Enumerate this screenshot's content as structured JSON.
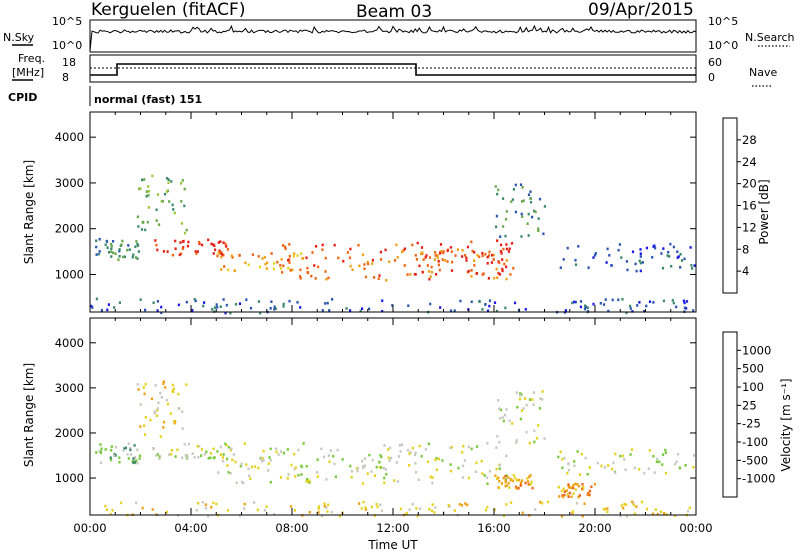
{
  "header": {
    "station": "Kerguelen (fitACF)",
    "beam": "Beam 03",
    "date": "09/Apr/2015"
  },
  "top_panels": {
    "nsky_label": "N.Sky",
    "nsky_ticks": [
      "10^5",
      "10^0"
    ],
    "nsearch_label": "N.Search",
    "nsearch_ticks": [
      "10^5",
      "10^0"
    ],
    "freq_label_line1": "Freq.",
    "freq_label_line2": "[MHz]",
    "freq_ticks": [
      "18",
      "8"
    ],
    "nave_label": "Nave",
    "nave_ticks": [
      "60",
      "0"
    ],
    "cpid_label": "CPID",
    "cpid_value": "normal (fast) 151"
  },
  "colors": {
    "power_scale": [
      "#1a1ae6",
      "#2b55b0",
      "#3c8a6a",
      "#6aa84a",
      "#9cc83c",
      "#e6d21e",
      "#f0a014",
      "#f06414",
      "#e61e14"
    ],
    "velocity_scale": [
      "#1a3cc8",
      "#2e6ab4",
      "#3c8a6a",
      "#78c83c",
      "#c8c8c0",
      "#e6d21e",
      "#f0a014",
      "#f06414",
      "#e61e14"
    ],
    "ground_scatter": "#c8c8c0"
  },
  "chart_data": [
    {
      "type": "heatmap",
      "name": "power",
      "xlabel": "",
      "ylabel": "Slant Range [km]",
      "ylim": [
        180,
        4550
      ],
      "x_ticks": [
        "00:00",
        "04:00",
        "08:00",
        "12:00",
        "16:00",
        "20:00",
        "00:00"
      ],
      "y_ticks": [
        "1000",
        "2000",
        "3000",
        "4000"
      ],
      "colorbar": {
        "label": "Power [dB]",
        "ticks": [
          "4",
          "8",
          "12",
          "16",
          "20",
          "24",
          "28"
        ],
        "range": [
          0,
          30
        ]
      },
      "echo_regions": [
        {
          "t0": 0.2,
          "t1": 2.0,
          "r0": 1350,
          "r1": 1800,
          "level": 2
        },
        {
          "t0": 1.8,
          "t1": 3.8,
          "r0": 1900,
          "r1": 3200,
          "level": 3
        },
        {
          "t0": 2.2,
          "t1": 5.5,
          "r0": 1450,
          "r1": 1800,
          "level": 8
        },
        {
          "t0": 5.0,
          "t1": 8.5,
          "r0": 1100,
          "r1": 1500,
          "level": 6
        },
        {
          "t0": 7.5,
          "t1": 16.5,
          "r0": 900,
          "r1": 1700,
          "level": 7
        },
        {
          "t0": 12.8,
          "t1": 16.8,
          "r0": 1000,
          "r1": 1800,
          "level": 8
        },
        {
          "t0": 16.0,
          "t1": 18.0,
          "r0": 1800,
          "r1": 3000,
          "level": 2
        },
        {
          "t0": 18.5,
          "t1": 24.0,
          "r0": 1100,
          "r1": 1700,
          "level": 1
        },
        {
          "t0": 0.0,
          "t1": 24.0,
          "r0": 180,
          "r1": 500,
          "level": 1
        }
      ]
    },
    {
      "type": "heatmap",
      "name": "velocity",
      "xlabel": "Time UT",
      "ylabel": "Slant Range [km]",
      "ylim": [
        180,
        4550
      ],
      "x_ticks": [
        "00:00",
        "04:00",
        "08:00",
        "12:00",
        "16:00",
        "20:00",
        "00:00"
      ],
      "y_ticks": [
        "1000",
        "2000",
        "3000",
        "4000"
      ],
      "colorbar": {
        "label": "Velocity [m s⁻¹]",
        "ticks": [
          "1000",
          "500",
          "100",
          "25",
          "-25",
          "-100",
          "-500",
          "-1000"
        ],
        "range": [
          -1000,
          1000
        ]
      },
      "echo_regions": [
        {
          "t0": 0.2,
          "t1": 2.0,
          "r0": 1350,
          "r1": 1800,
          "level": 3
        },
        {
          "t0": 1.8,
          "t1": 3.8,
          "r0": 1900,
          "r1": 3200,
          "level": 5
        },
        {
          "t0": 2.2,
          "t1": 5.5,
          "r0": 1450,
          "r1": 1800,
          "level": 4
        },
        {
          "t0": 5.0,
          "t1": 16.5,
          "r0": 900,
          "r1": 1800,
          "level": 4
        },
        {
          "t0": 16.0,
          "t1": 18.0,
          "r0": 1800,
          "r1": 3000,
          "level": 4
        },
        {
          "t0": 16.0,
          "t1": 17.5,
          "r0": 800,
          "r1": 1100,
          "level": 6
        },
        {
          "t0": 18.5,
          "t1": 20.0,
          "r0": 600,
          "r1": 900,
          "level": 6
        },
        {
          "t0": 18.5,
          "t1": 24.0,
          "r0": 1100,
          "r1": 1700,
          "level": 4
        },
        {
          "t0": 0.0,
          "t1": 24.0,
          "r0": 180,
          "r1": 500,
          "level": 5
        }
      ]
    }
  ]
}
